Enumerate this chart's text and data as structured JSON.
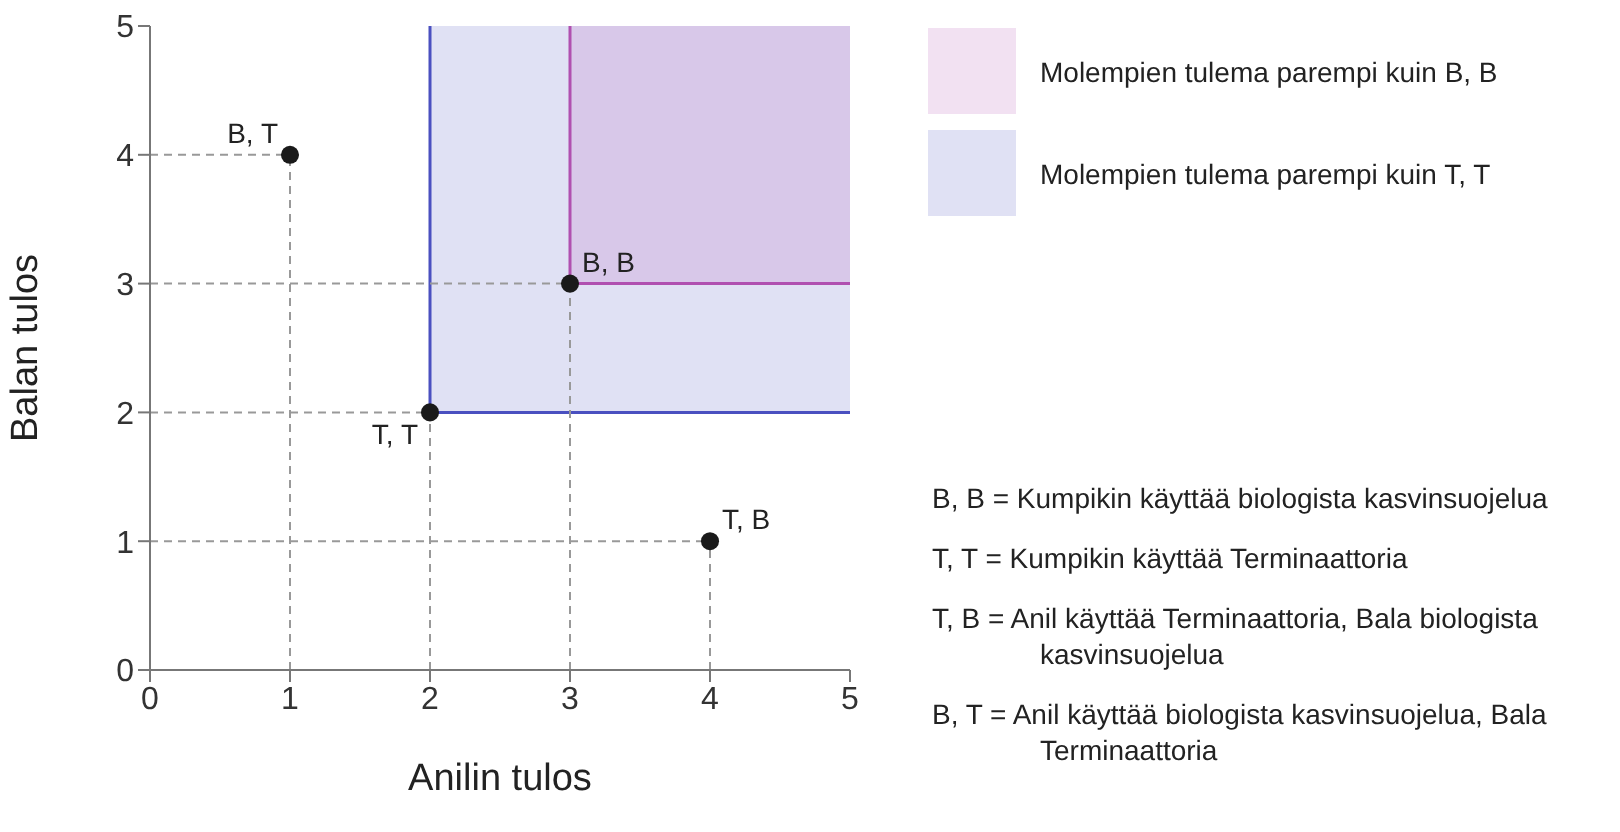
{
  "chart_data": {
    "type": "scatter",
    "xlabel": "Anilin tulos",
    "ylabel": "Balan tulos",
    "xlim": [
      0,
      5
    ],
    "ylim": [
      0,
      5
    ],
    "xticks": [
      0,
      1,
      2,
      3,
      4,
      5
    ],
    "yticks": [
      0,
      1,
      2,
      3,
      4,
      5
    ],
    "legend": "top right",
    "series": [
      {
        "type": "line",
        "name": "Molempien tulema parempi kuin T, T",
        "color": "#4a50c0",
        "x": [
          2,
          5
        ],
        "values": [
          2,
          2
        ],
        "lower": [
          2,
          2
        ],
        "upper": [
          5,
          5
        ]
      },
      {
        "type": "line",
        "name": "Molempien tulema parempi kuin B, B",
        "color": "#b050b0",
        "x": [
          3,
          5
        ],
        "values": [
          3,
          3
        ],
        "lower": [
          3,
          3
        ],
        "upper": [
          5,
          5
        ]
      },
      {
        "color": "#1a1a1a",
        "marker": "circle",
        "x": [
          1,
          2,
          3,
          4
        ],
        "values": [
          4,
          2,
          3,
          1
        ]
      }
    ],
    "annotations": [
      {
        "text": "B, T",
        "x": 1,
        "y": 4
      },
      {
        "text": "T, T",
        "x": 2,
        "y": 2
      },
      {
        "text": "B, B",
        "x": 3,
        "y": 3
      },
      {
        "text": "T, B",
        "x": 4,
        "y": 1
      },
      "B, B = Kumpikin käyttää biologista kasvinsuojelua",
      "T, T = Kumpikin käyttää Terminaattoria",
      "T, B = Anil käyttää Terminaattoria, Bala biologista kasvinsuojelua",
      "B, T = Anil käyttää biologista kasvinsuojelua, Bala Terminaattoria"
    ]
  }
}
